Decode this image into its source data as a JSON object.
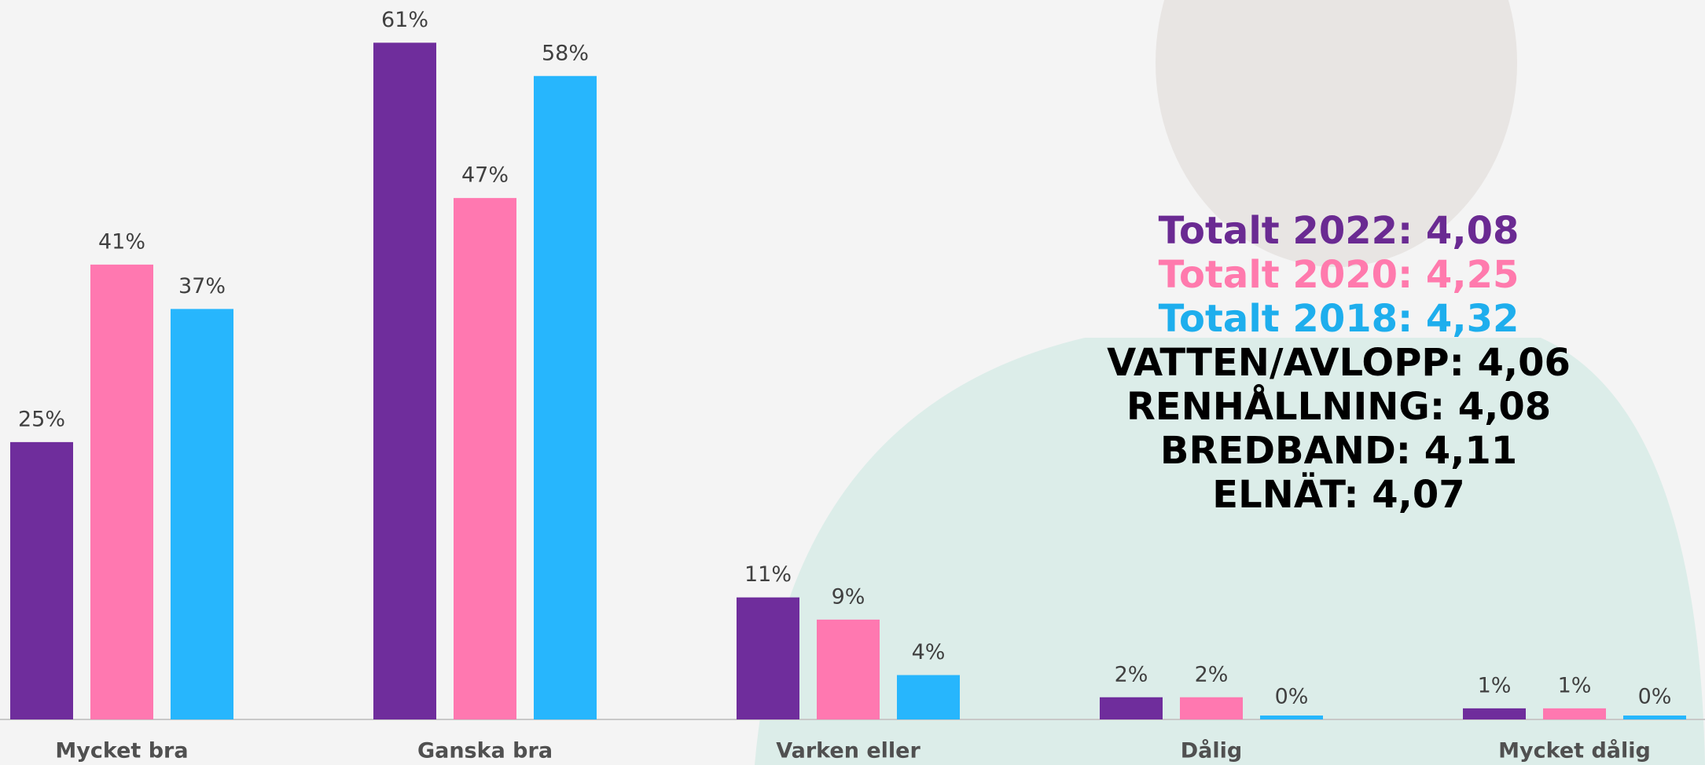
{
  "chart_data": {
    "type": "bar",
    "categories": [
      "Mycket bra",
      "Ganska bra",
      "Varken eller",
      "Dålig",
      "Mycket dålig"
    ],
    "series": [
      {
        "color": "#6f2d9c",
        "values": [
          25,
          61,
          11,
          2,
          1
        ],
        "value_labels": [
          "25%",
          "61%",
          "11%",
          "2%",
          "1%"
        ]
      },
      {
        "color": "#ff78b0",
        "values": [
          41,
          47,
          9,
          2,
          1
        ],
        "value_labels": [
          "41%",
          "47%",
          "9%",
          "2%",
          "1%"
        ]
      },
      {
        "color": "#27b6fd",
        "values": [
          37,
          58,
          4,
          0,
          0
        ],
        "value_labels": [
          "37%",
          "58%",
          "4%",
          "0%",
          "0%"
        ]
      }
    ],
    "ylim": [
      0,
      64
    ],
    "annotations": [
      {
        "text": "Totalt 2022: 4,08",
        "color": "#6a2a92"
      },
      {
        "text": "Totalt 2020: 4,25",
        "color": "#ff7aad"
      },
      {
        "text": "Totalt 2018: 4,32",
        "color": "#1eaeed"
      },
      {
        "text": "VATTEN/AVLOPP: 4,06",
        "color": "#000000"
      },
      {
        "text": "RENHÅLLNING: 4,08",
        "color": "#000000"
      },
      {
        "text": "BREDBAND: 4,11",
        "color": "#000000"
      },
      {
        "text": "ELNÄT: 4,07",
        "color": "#000000"
      }
    ]
  }
}
